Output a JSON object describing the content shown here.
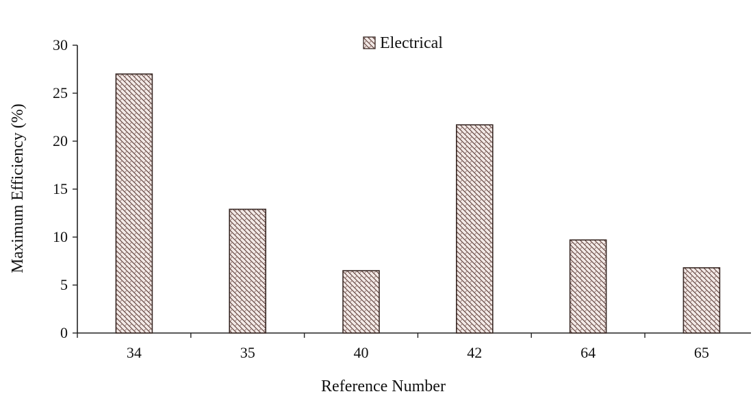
{
  "chart_data": {
    "type": "bar",
    "title": "",
    "xlabel": "Reference Number",
    "ylabel": "Maximum Efficiency (%)",
    "categories": [
      "34",
      "35",
      "40",
      "42",
      "64",
      "65"
    ],
    "series": [
      {
        "name": "Electrical",
        "values": [
          27.0,
          12.9,
          6.5,
          21.7,
          9.7,
          6.8
        ]
      }
    ],
    "ylim": [
      0,
      30
    ],
    "yticks": [
      "0",
      "5",
      "10",
      "15",
      "20",
      "25",
      "30"
    ],
    "grid": false,
    "legend_position": "top-center"
  },
  "colors": {
    "bar_fill": "#f2e9e6",
    "bar_hatch": "#5a3b36",
    "axis": "#222222"
  }
}
